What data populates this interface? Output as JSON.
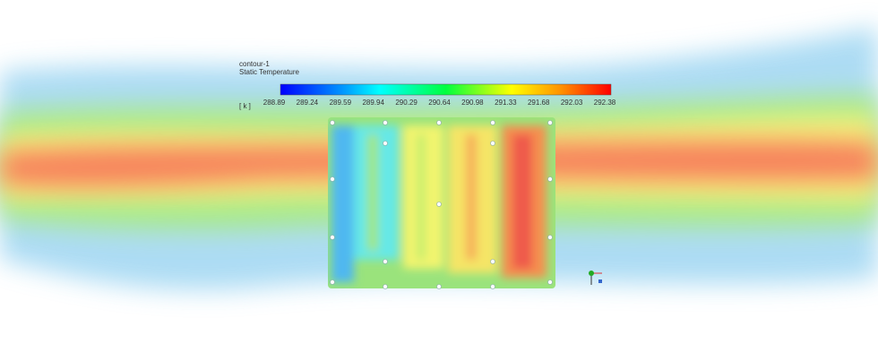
{
  "legend": {
    "name": "contour-1",
    "variable": "Static Temperature",
    "unit": "[ k ]",
    "ticks": [
      "288.89",
      "289.24",
      "289.59",
      "289.94",
      "290.29",
      "290.64",
      "290.98",
      "291.33",
      "291.68",
      "292.03",
      "292.38"
    ]
  }
}
